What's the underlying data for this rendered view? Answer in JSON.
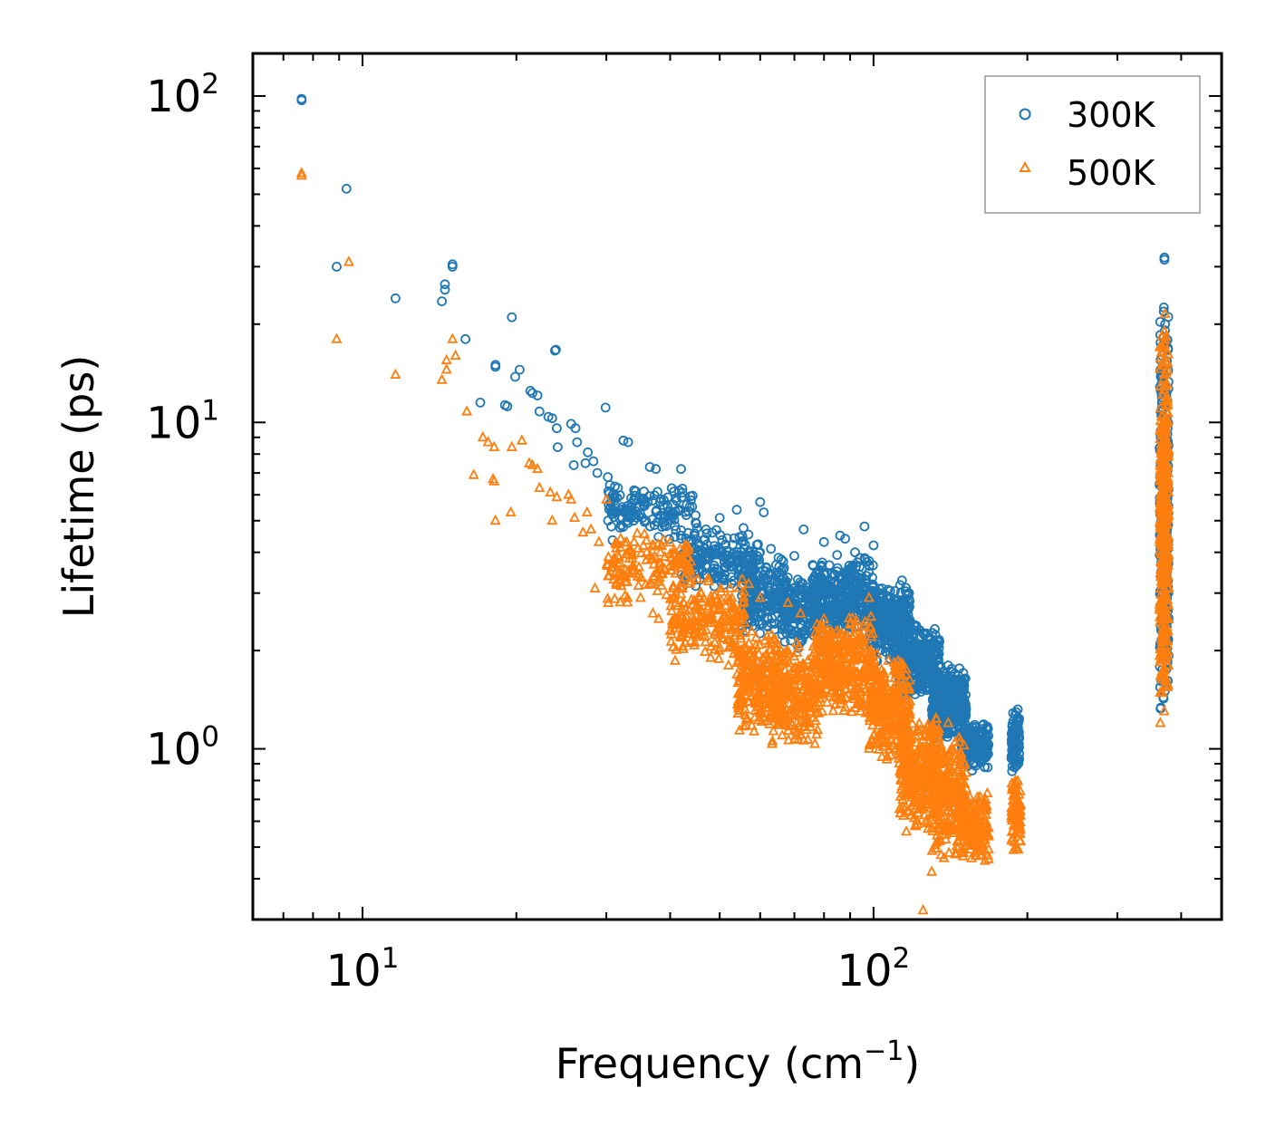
{
  "chart_data": {
    "type": "scatter",
    "xscale": "log",
    "yscale": "log",
    "xlabel": "Frequency (cm⁻¹)",
    "xlabel_base": "Frequency (cm",
    "xlabel_sup": "−1",
    "xlabel_close": ")",
    "ylabel": "Lifetime (ps)",
    "xlim": [
      6.1,
      480
    ],
    "ylim": [
      0.3,
      135
    ],
    "x_ticks": [
      {
        "value": 10,
        "base": "10",
        "exp": "1"
      },
      {
        "value": 100,
        "base": "10",
        "exp": "2"
      }
    ],
    "y_ticks": [
      {
        "value": 1,
        "base": "10",
        "exp": "0"
      },
      {
        "value": 10,
        "base": "10",
        "exp": "1"
      },
      {
        "value": 100,
        "base": "10",
        "exp": "2"
      }
    ],
    "legend_position": "top-right",
    "series": [
      {
        "name": "300K",
        "marker": "circle",
        "color": "#1f77b4",
        "points": [
          [
            7.6,
            98
          ],
          [
            7.6,
            97
          ],
          [
            9.3,
            52
          ],
          [
            8.9,
            30
          ],
          [
            11.6,
            24
          ],
          [
            14.3,
            23.5
          ],
          [
            14.5,
            25.5
          ],
          [
            14.5,
            26.5
          ],
          [
            15.0,
            30.5
          ],
          [
            15.0,
            30
          ],
          [
            15.9,
            18
          ],
          [
            17.0,
            11.5
          ],
          [
            18.2,
            14.8
          ],
          [
            18.2,
            15
          ],
          [
            19.0,
            11.3
          ],
          [
            19.2,
            11.2
          ],
          [
            19.6,
            21
          ],
          [
            19.9,
            13.8
          ],
          [
            20.3,
            14.5
          ],
          [
            21.3,
            12.5
          ],
          [
            21.5,
            12.3
          ],
          [
            22.0,
            12.1
          ],
          [
            22.2,
            10.8
          ],
          [
            23.1,
            10.4
          ],
          [
            23.5,
            10.3
          ],
          [
            23.9,
            16.7
          ],
          [
            23.8,
            16.6
          ],
          [
            24.1,
            8.4
          ],
          [
            24.0,
            9.6
          ],
          [
            25.6,
            9.9
          ],
          [
            26.1,
            9.6
          ],
          [
            26.3,
            8.7
          ],
          [
            25.9,
            7.4
          ],
          [
            27.3,
            7.5
          ],
          [
            27.6,
            8.1
          ],
          [
            28.3,
            7.6
          ],
          [
            28.8,
            7.0
          ],
          [
            29.9,
            11.1
          ],
          [
            30.2,
            6.8
          ],
          [
            30.9,
            6.0
          ],
          [
            31.6,
            6.3
          ],
          [
            32.4,
            8.8
          ],
          [
            33.1,
            8.7
          ],
          [
            34.0,
            6.2
          ],
          [
            35.5,
            5.7
          ],
          [
            36.5,
            7.3
          ],
          [
            37.5,
            7.2
          ],
          [
            39.0,
            5.1
          ],
          [
            40.5,
            5.6
          ],
          [
            42.0,
            7.2
          ],
          [
            43.0,
            5.2
          ],
          [
            45.0,
            4.9
          ],
          [
            47.0,
            4.7
          ],
          [
            50.0,
            5.1
          ],
          [
            54.0,
            5.4
          ],
          [
            56.0,
            3.6
          ],
          [
            60.0,
            5.7
          ],
          [
            61.0,
            5.3
          ],
          [
            63.0,
            4.1
          ],
          [
            66.0,
            3.8
          ],
          [
            70.0,
            3.9
          ],
          [
            73.0,
            4.7
          ],
          [
            80.0,
            4.3
          ],
          [
            86.0,
            4.5
          ],
          [
            88.0,
            4.4
          ],
          [
            92.0,
            4.0
          ],
          [
            96.0,
            4.8
          ],
          [
            100.0,
            4.2
          ],
          [
            104.0,
            3.1
          ],
          [
            110.0,
            2.6
          ],
          [
            120.0,
            2.4
          ],
          [
            130.0,
            2.1
          ],
          [
            140.0,
            1.8
          ],
          [
            150.0,
            1.5
          ],
          [
            158.0,
            1.0
          ],
          [
            165.0,
            0.88
          ]
        ],
        "bands": [
          {
            "xmin": 30,
            "xmax": 45,
            "ylow": 4.3,
            "yhigh": 6.6,
            "n": 130,
            "seed": 11
          },
          {
            "xmin": 42,
            "xmax": 60,
            "ylow": 3.0,
            "yhigh": 4.8,
            "n": 200,
            "seed": 12
          },
          {
            "xmin": 55,
            "xmax": 68,
            "ylow": 2.2,
            "yhigh": 3.9,
            "n": 200,
            "seed": 13
          },
          {
            "xmin": 66,
            "xmax": 78,
            "ylow": 2.0,
            "yhigh": 3.5,
            "n": 180,
            "seed": 14
          },
          {
            "xmin": 76,
            "xmax": 100,
            "ylow": 2.2,
            "yhigh": 4.0,
            "n": 320,
            "seed": 15
          },
          {
            "xmin": 98,
            "xmax": 118,
            "ylow": 1.8,
            "yhigh": 3.3,
            "n": 300,
            "seed": 16
          },
          {
            "xmin": 112,
            "xmax": 135,
            "ylow": 1.4,
            "yhigh": 2.4,
            "n": 320,
            "seed": 17
          },
          {
            "xmin": 130,
            "xmax": 152,
            "ylow": 1.05,
            "yhigh": 1.8,
            "n": 300,
            "seed": 18
          },
          {
            "xmin": 148,
            "xmax": 168,
            "ylow": 0.85,
            "yhigh": 1.25,
            "n": 200,
            "seed": 19
          },
          {
            "xmin": 186,
            "xmax": 193,
            "ylow": 0.82,
            "yhigh": 1.35,
            "n": 90,
            "seed": 20
          },
          {
            "xmin": 363,
            "xmax": 378,
            "ylow": 1.25,
            "yhigh": 22,
            "n": 400,
            "seed": 21
          }
        ],
        "extra_points": [
          [
            371,
            32
          ],
          [
            371,
            31.5
          ],
          [
            370,
            22.5
          ],
          [
            372,
            20
          ]
        ]
      },
      {
        "name": "500K",
        "marker": "triangle",
        "color": "#ff7f0e",
        "points": [
          [
            7.6,
            57
          ],
          [
            7.6,
            58
          ],
          [
            9.4,
            31
          ],
          [
            8.9,
            18
          ],
          [
            11.6,
            14
          ],
          [
            14.3,
            13.5
          ],
          [
            14.6,
            14.5
          ],
          [
            14.6,
            15.5
          ],
          [
            15.0,
            18
          ],
          [
            15.2,
            16
          ],
          [
            16.0,
            10.8
          ],
          [
            16.5,
            6.9
          ],
          [
            17.2,
            9.0
          ],
          [
            17.6,
            8.7
          ],
          [
            18.0,
            6.7
          ],
          [
            18.1,
            6.6
          ],
          [
            18.1,
            8.4
          ],
          [
            18.2,
            5.0
          ],
          [
            19.5,
            5.3
          ],
          [
            19.6,
            8.4
          ],
          [
            20.5,
            8.8
          ],
          [
            21.2,
            7.5
          ],
          [
            21.5,
            7.4
          ],
          [
            22.0,
            7.2
          ],
          [
            22.2,
            6.3
          ],
          [
            23.3,
            6.1
          ],
          [
            23.5,
            5.0
          ],
          [
            24.0,
            5.9
          ],
          [
            25.3,
            6.0
          ],
          [
            25.6,
            5.8
          ],
          [
            26.0,
            5.1
          ],
          [
            27.0,
            4.6
          ],
          [
            27.5,
            5.3
          ],
          [
            28.0,
            4.7
          ],
          [
            28.5,
            3.1
          ],
          [
            29.0,
            4.3
          ],
          [
            30.0,
            5.8
          ],
          [
            31.0,
            3.3
          ],
          [
            32.0,
            4.4
          ],
          [
            33.0,
            2.9
          ],
          [
            34.0,
            4.3
          ],
          [
            35.0,
            2.9
          ],
          [
            36.0,
            4.0
          ],
          [
            37.0,
            2.6
          ],
          [
            38.0,
            2.5
          ],
          [
            40.0,
            2.3
          ],
          [
            42.0,
            3.7
          ],
          [
            44.0,
            3.4
          ],
          [
            46.0,
            3.0
          ],
          [
            48.0,
            1.9
          ],
          [
            52.0,
            1.8
          ],
          [
            57.0,
            3.2
          ],
          [
            58.0,
            1.9
          ],
          [
            60.0,
            2.9
          ],
          [
            62.0,
            1.6
          ],
          [
            64.0,
            1.7
          ],
          [
            68.0,
            2.8
          ],
          [
            72.0,
            2.6
          ],
          [
            75.0,
            1.3
          ],
          [
            80.0,
            2.5
          ],
          [
            85.0,
            2.3
          ],
          [
            90.0,
            2.4
          ],
          [
            95.0,
            2.2
          ],
          [
            98.0,
            2.9
          ],
          [
            105.0,
            1.7
          ],
          [
            110.0,
            1.4
          ],
          [
            125.0,
            0.32
          ],
          [
            130.0,
            0.42
          ],
          [
            140.0,
            1.2
          ],
          [
            150.0,
            0.48
          ],
          [
            160.0,
            0.55
          ],
          [
            188.0,
            0.49
          ],
          [
            190.0,
            0.5
          ],
          [
            364.0,
            1.2
          ]
        ],
        "bands": [
          {
            "xmin": 30,
            "xmax": 44,
            "ylow": 2.7,
            "yhigh": 4.8,
            "n": 150,
            "seed": 31
          },
          {
            "xmin": 40,
            "xmax": 56,
            "ylow": 1.8,
            "yhigh": 3.4,
            "n": 220,
            "seed": 32
          },
          {
            "xmin": 54,
            "xmax": 66,
            "ylow": 1.05,
            "yhigh": 2.4,
            "n": 260,
            "seed": 33
          },
          {
            "xmin": 63,
            "xmax": 78,
            "ylow": 1.0,
            "yhigh": 2.2,
            "n": 240,
            "seed": 34
          },
          {
            "xmin": 76,
            "xmax": 100,
            "ylow": 1.2,
            "yhigh": 2.7,
            "n": 360,
            "seed": 35
          },
          {
            "xmin": 98,
            "xmax": 118,
            "ylow": 0.9,
            "yhigh": 2.0,
            "n": 320,
            "seed": 36
          },
          {
            "xmin": 112,
            "xmax": 135,
            "ylow": 0.55,
            "yhigh": 1.3,
            "n": 340,
            "seed": 37
          },
          {
            "xmin": 130,
            "xmax": 152,
            "ylow": 0.45,
            "yhigh": 1.1,
            "n": 280,
            "seed": 38
          },
          {
            "xmin": 148,
            "xmax": 168,
            "ylow": 0.45,
            "yhigh": 0.75,
            "n": 180,
            "seed": 39
          },
          {
            "xmin": 186,
            "xmax": 194,
            "ylow": 0.48,
            "yhigh": 0.82,
            "n": 90,
            "seed": 40
          },
          {
            "xmin": 363,
            "xmax": 378,
            "ylow": 1.2,
            "yhigh": 20,
            "n": 400,
            "seed": 41
          }
        ],
        "extra_points": [
          [
            372,
            21.5
          ],
          [
            371,
            19
          ],
          [
            370,
            17.5
          ]
        ]
      }
    ]
  }
}
